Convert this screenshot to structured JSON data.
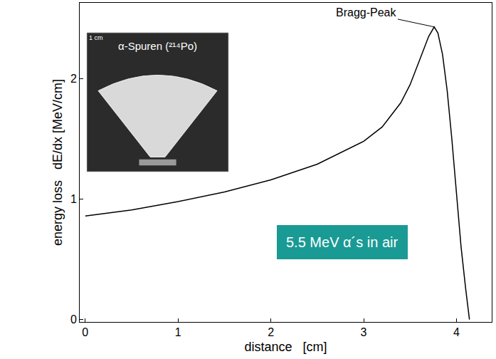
{
  "chart_data": {
    "type": "line",
    "x": [
      0,
      0.5,
      1,
      1.5,
      2,
      2.5,
      3,
      3.2,
      3.4,
      3.5,
      3.6,
      3.7,
      3.76,
      3.8,
      3.85,
      3.9,
      3.95,
      4.0,
      4.05,
      4.1,
      4.13,
      4.14
    ],
    "values": [
      0.86,
      0.91,
      0.98,
      1.06,
      1.16,
      1.29,
      1.48,
      1.6,
      1.8,
      1.95,
      2.15,
      2.35,
      2.43,
      2.38,
      2.2,
      1.9,
      1.5,
      1.05,
      0.6,
      0.25,
      0.05,
      0
    ],
    "color": "#000000",
    "x_label": "distance   [cm]",
    "y_label": "energy loss   dE/dx [MeV/cm]",
    "xlim": [
      -0.06,
      4.38
    ],
    "ylim": [
      -0.02,
      2.63
    ],
    "xticks": [
      0,
      1,
      2,
      3,
      4
    ],
    "yticks": [
      0,
      1,
      2
    ],
    "grid": false,
    "annotations": {
      "peak": "Bragg-Peak",
      "inset": "α-Spuren (²¹⁴Po)",
      "scale": "1 cm",
      "box": "5.5 MeV α´s in air"
    }
  }
}
